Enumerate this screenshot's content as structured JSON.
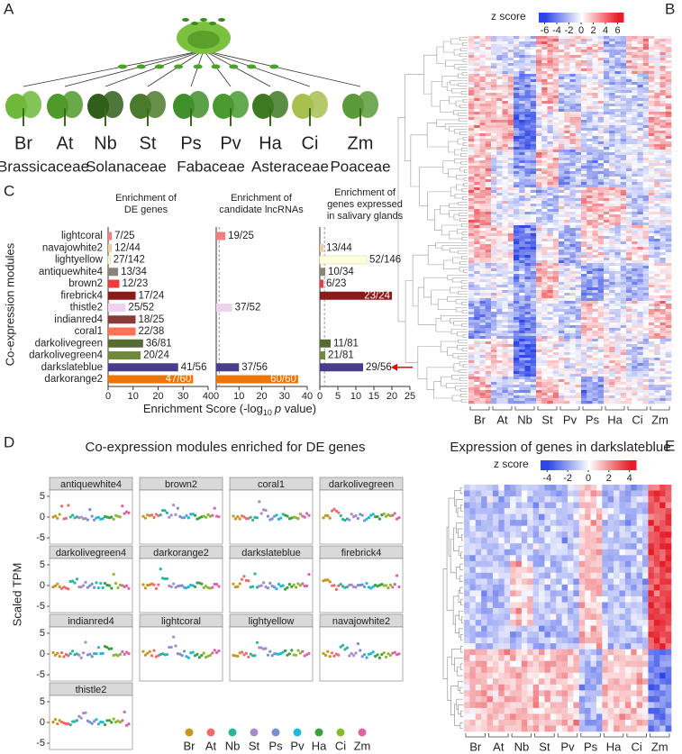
{
  "panel_labels": {
    "a": "A",
    "b": "B",
    "c": "C",
    "d": "D",
    "e": "E"
  },
  "panel_a": {
    "species": [
      "Br",
      "At",
      "Nb",
      "St",
      "Ps",
      "Pv",
      "Ha",
      "Ci",
      "Zm"
    ],
    "families": [
      "Brassicaceae",
      "Solanaceae",
      "Fabaceae",
      "Asteraceae",
      "Poaceae"
    ]
  },
  "panel_b": {
    "legend_title": "z score",
    "legend_ticks": [
      -6,
      -4,
      -2,
      0,
      2,
      4,
      6
    ],
    "columns": [
      "Br",
      "At",
      "Nb",
      "St",
      "Pv",
      "Ps",
      "Ha",
      "Ci",
      "Zm"
    ]
  },
  "panel_c": {
    "y_label": "Co-expression modules",
    "x_label": [
      "Enrichment Score  (-log",
      "10",
      "p",
      " value)"
    ]
  },
  "chart_data": [
    {
      "type": "bar",
      "orientation": "horizontal",
      "title": [
        "Enrichment of",
        "DE genes"
      ],
      "categories": [
        "lightcoral",
        "navajowhite2",
        "lightyellow",
        "antiquewhite4",
        "brown2",
        "firebrick4",
        "thistle2",
        "indianred4",
        "coral1",
        "darkolivegreen",
        "darkolivegreen4",
        "darkslateblue",
        "darkorange2"
      ],
      "values": [
        1.5,
        1.5,
        1,
        4,
        4.5,
        11,
        7,
        11,
        11,
        14,
        13,
        28,
        34
      ],
      "value_labels": [
        "7/25",
        "12/44",
        "27/142",
        "13/34",
        "12/23",
        "17/24",
        "25/52",
        "18/25",
        "22/38",
        "36/81",
        "20/24",
        "41/56",
        "47/60"
      ],
      "colors": [
        "#f08080",
        "#eecfa1",
        "#ffffe0",
        "#8b8378",
        "#ee3b3b",
        "#8b1a1a",
        "#eed2ee",
        "#8b3a3a",
        "#ff7256",
        "#556b2f",
        "#6e8b3d",
        "#483d8b",
        "#ee7600"
      ],
      "xlim": [
        0,
        40
      ],
      "xticks": [
        0,
        10,
        20,
        30,
        40
      ]
    },
    {
      "type": "bar",
      "orientation": "horizontal",
      "title": [
        "Enrichment of",
        "candidate lncRNAs"
      ],
      "values": [
        4,
        null,
        null,
        null,
        null,
        null,
        7,
        null,
        null,
        null,
        null,
        10,
        36
      ],
      "value_labels": [
        "19/25",
        null,
        null,
        null,
        null,
        null,
        "37/52",
        null,
        null,
        null,
        null,
        "37/56",
        "60/60"
      ],
      "colors": [
        "#f08080",
        "#eecfa1",
        "#ffffe0",
        "#8b8378",
        "#ee3b3b",
        "#8b1a1a",
        "#eed2ee",
        "#8b3a3a",
        "#ff7256",
        "#556b2f",
        "#6e8b3d",
        "#483d8b",
        "#ee7600"
      ],
      "xlim": [
        0,
        40
      ],
      "xticks": [
        0,
        10,
        20,
        30,
        40
      ],
      "threshold": 1.3
    },
    {
      "type": "bar",
      "orientation": "horizontal",
      "title": [
        "Enrichment of",
        "genes expressed",
        "in salivary glands"
      ],
      "values": [
        null,
        1,
        13,
        1.5,
        1,
        20,
        null,
        null,
        null,
        3,
        1.5,
        12,
        null
      ],
      "value_labels": [
        null,
        "13/44",
        "52/146",
        "10/34",
        "6/23",
        "23/24",
        null,
        null,
        null,
        "11/81",
        "21/81",
        "29/56",
        null
      ],
      "colors": [
        "#f08080",
        "#eecfa1",
        "#ffffe0",
        "#8b8378",
        "#ee3b3b",
        "#8b1a1a",
        "#eed2ee",
        "#8b3a3a",
        "#ff7256",
        "#556b2f",
        "#6e8b3d",
        "#483d8b",
        "#ee7600"
      ],
      "xlim": [
        0,
        25
      ],
      "xticks": [
        0,
        5,
        10,
        15,
        20,
        25
      ],
      "threshold": 1.3
    }
  ],
  "panel_d": {
    "title": "Co-expression modules enriched for DE genes",
    "y_label": "Scaled TPM",
    "yticks": [
      5,
      0,
      -5
    ],
    "facets": [
      "antiquewhite4",
      "brown2",
      "coral1",
      "darkolivegreen",
      "darkolivegreen4",
      "darkorange2",
      "darkslateblue",
      "firebrick4",
      "indianred4",
      "lightcoral",
      "lightyellow",
      "navajowhite2",
      "thistle2"
    ],
    "legend": [
      "Br",
      "At",
      "Nb",
      "St",
      "Ps",
      "Pv",
      "Ha",
      "Ci",
      "Zm"
    ]
  },
  "panel_e": {
    "title": "Expression of genes in darkslateblue",
    "legend_title": "z score",
    "legend_ticks": [
      -4,
      -2,
      0,
      2,
      4
    ],
    "columns": [
      "Br",
      "At",
      "Nb",
      "St",
      "Pv",
      "Ps",
      "Ha",
      "Ci",
      "Zm"
    ]
  }
}
